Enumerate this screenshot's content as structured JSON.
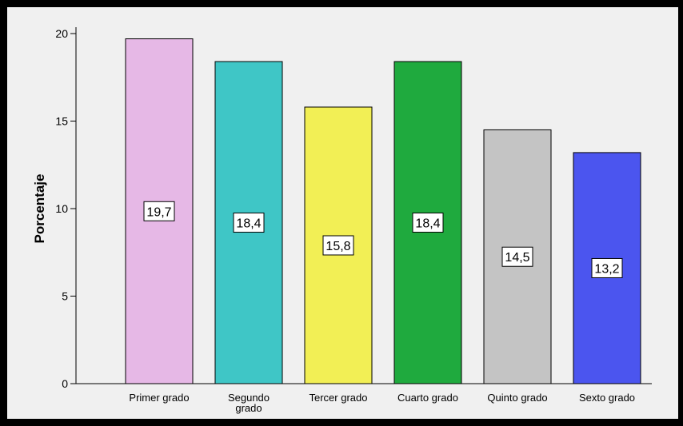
{
  "chart_data": {
    "type": "bar",
    "categories": [
      "Primer grado",
      "Segundo grado",
      "Tercer grado",
      "Cuarto grado",
      "Quinto grado",
      "Sexto grado"
    ],
    "values": [
      19.7,
      18.4,
      15.8,
      18.4,
      14.5,
      13.2
    ],
    "data_labels": [
      "19,7",
      "18,4",
      "15,8",
      "18,4",
      "14,5",
      "13,2"
    ],
    "bar_colors": [
      "#e6b8e6",
      "#3fc6c6",
      "#f2ef55",
      "#1faa3e",
      "#c4c4c4",
      "#4b55ef"
    ],
    "ylabel": "Porcentaje",
    "xlabel": "",
    "yticks": [
      0,
      5,
      10,
      15,
      20
    ],
    "ylim": [
      0,
      20
    ],
    "grid": false,
    "legend": "none"
  }
}
